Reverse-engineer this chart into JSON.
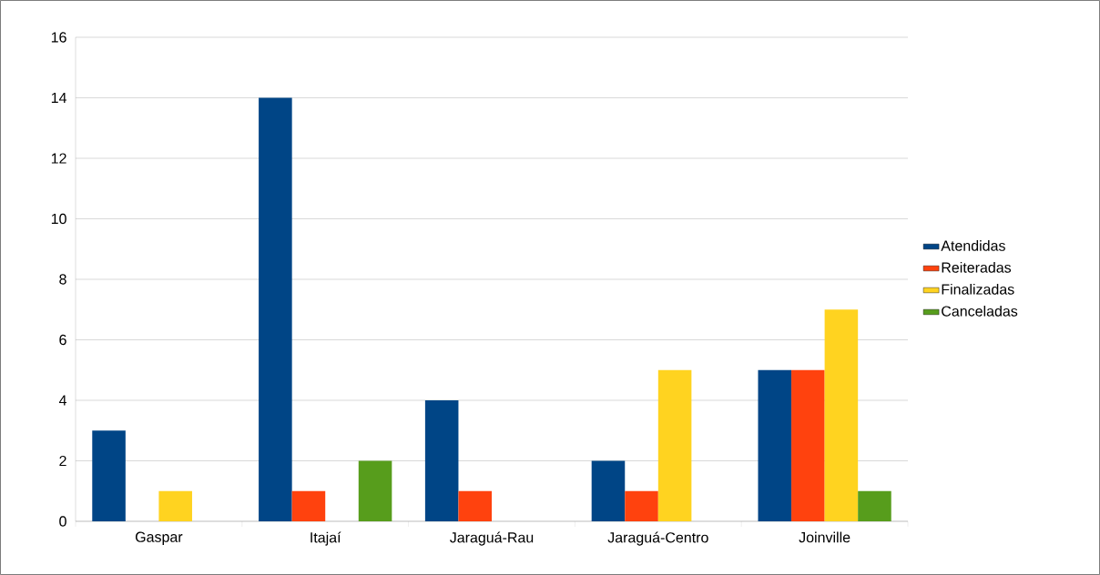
{
  "chart_data": {
    "type": "bar",
    "categories": [
      "Gaspar",
      "Itajaí",
      "Jaraguá-Rau",
      "Jaraguá-Centro",
      "Joinville"
    ],
    "series": [
      {
        "name": "Atendidas",
        "color": "#004586",
        "values": [
          3,
          14,
          4,
          2,
          5
        ]
      },
      {
        "name": "Reiteradas",
        "color": "#ff420e",
        "values": [
          null,
          1,
          1,
          1,
          5
        ]
      },
      {
        "name": "Finalizadas",
        "color": "#ffd320",
        "values": [
          1,
          null,
          null,
          5,
          7
        ]
      },
      {
        "name": "Canceladas",
        "color": "#579d1c",
        "values": [
          null,
          2,
          null,
          null,
          1
        ]
      }
    ],
    "ylim": [
      0,
      16
    ],
    "yticks": [
      0,
      2,
      4,
      6,
      8,
      10,
      12,
      14,
      16
    ],
    "grid": "y",
    "legend": "right"
  }
}
